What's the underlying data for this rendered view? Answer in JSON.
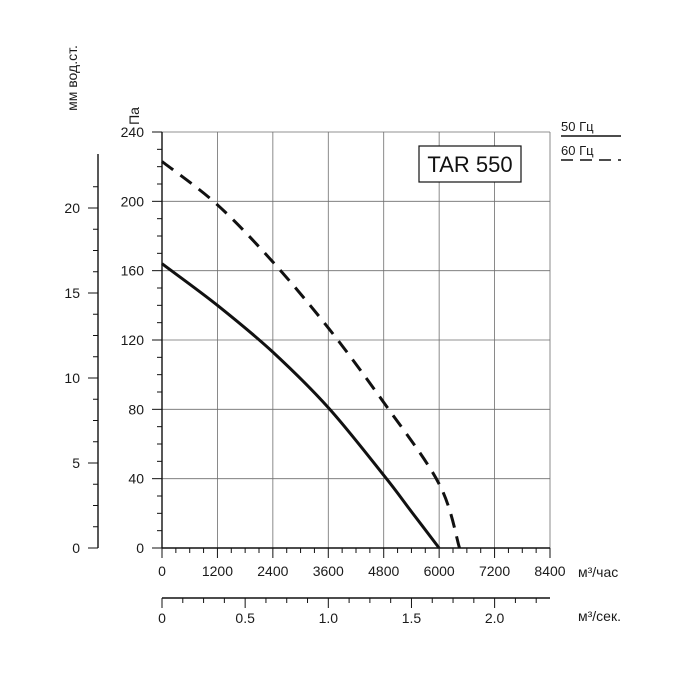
{
  "chart_data": {
    "type": "line",
    "model": "TAR 550",
    "x_unit": "м³/час",
    "x2_unit": "м³/сек.",
    "y_unit": "Па",
    "y2_unit": "мм вод.ст.",
    "xlim": [
      0,
      8400
    ],
    "ylim": [
      0,
      240
    ],
    "x_ticks": [
      0,
      1200,
      2400,
      3600,
      4800,
      6000,
      7200,
      8400
    ],
    "y_ticks": [
      0,
      40,
      80,
      120,
      160,
      200,
      240
    ],
    "x2_ticks": [
      {
        "value": 0,
        "label": "0"
      },
      {
        "value": 0.5,
        "label": "0.5"
      },
      {
        "value": 1.0,
        "label": "1.0"
      },
      {
        "value": 1.5,
        "label": "1.5"
      },
      {
        "value": 2.0,
        "label": "2.0"
      }
    ],
    "x2_lim": [
      0,
      2.333
    ],
    "y2_ticks": [
      0,
      5,
      10,
      15,
      20
    ],
    "y2_lim": [
      0,
      24.47
    ],
    "grid": true,
    "series": [
      {
        "name": "50 Гц",
        "style": "solid",
        "color": "#111111",
        "x": [
          0,
          1200,
          2400,
          3600,
          4800,
          5400,
          6000
        ],
        "y": [
          164,
          140,
          113,
          81,
          42,
          21,
          0
        ]
      },
      {
        "name": "60 Гц",
        "style": "dashed",
        "color": "#111111",
        "x": [
          0,
          1200,
          2400,
          3600,
          4800,
          6000,
          6440
        ],
        "y": [
          223,
          198,
          165,
          127,
          84,
          37,
          0
        ]
      }
    ]
  }
}
